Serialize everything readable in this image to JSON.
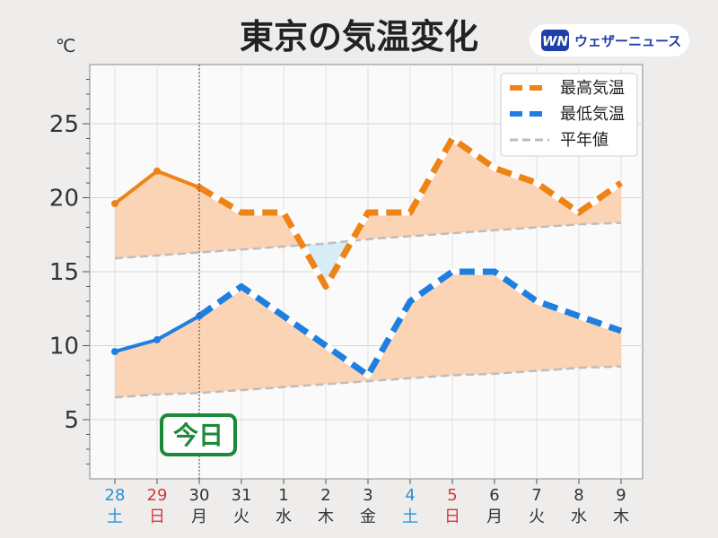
{
  "chart_data": {
    "type": "line",
    "title": "東京の気温変化",
    "unit": "℃",
    "ylim": [
      1,
      29
    ],
    "yticks": [
      5,
      10,
      15,
      20,
      25
    ],
    "categories": [
      {
        "day": "28",
        "weekday": "土",
        "color": "#2a8fd6"
      },
      {
        "day": "29",
        "weekday": "日",
        "color": "#d9343c"
      },
      {
        "day": "30",
        "weekday": "月",
        "color": "#333333"
      },
      {
        "day": "31",
        "weekday": "火",
        "color": "#333333"
      },
      {
        "day": "1",
        "weekday": "水",
        "color": "#333333"
      },
      {
        "day": "2",
        "weekday": "木",
        "color": "#333333"
      },
      {
        "day": "3",
        "weekday": "金",
        "color": "#333333"
      },
      {
        "day": "4",
        "weekday": "土",
        "color": "#2a8fd6"
      },
      {
        "day": "5",
        "weekday": "日",
        "color": "#d9343c"
      },
      {
        "day": "6",
        "weekday": "月",
        "color": "#333333"
      },
      {
        "day": "7",
        "weekday": "火",
        "color": "#333333"
      },
      {
        "day": "8",
        "weekday": "水",
        "color": "#333333"
      },
      {
        "day": "9",
        "weekday": "木",
        "color": "#333333"
      }
    ],
    "today_index": 2,
    "today_label": "今日",
    "observed_until_index": 2,
    "series": [
      {
        "name": "最高気温",
        "color": "#ee8416",
        "values": [
          19.6,
          21.8,
          20.7,
          19,
          19,
          14,
          19,
          19,
          24,
          22,
          21,
          19,
          21
        ]
      },
      {
        "name": "最低気温",
        "color": "#1f7fe0",
        "values": [
          9.6,
          10.4,
          12,
          14,
          12,
          10,
          8,
          13,
          15,
          15,
          13,
          12,
          11
        ]
      },
      {
        "name": "平年値",
        "color": "#bdbdbd",
        "normal_high": [
          15.9,
          16.1,
          16.3,
          16.5,
          16.7,
          16.9,
          17.2,
          17.4,
          17.6,
          17.8,
          18.0,
          18.2,
          18.3
        ],
        "normal_low": [
          6.5,
          6.7,
          6.8,
          7.0,
          7.2,
          7.4,
          7.6,
          7.8,
          8.0,
          8.1,
          8.3,
          8.5,
          8.6
        ]
      }
    ],
    "grid": true,
    "legend": "top-right"
  },
  "brand": {
    "logo": "WN",
    "name": "ウェザーニュース"
  }
}
